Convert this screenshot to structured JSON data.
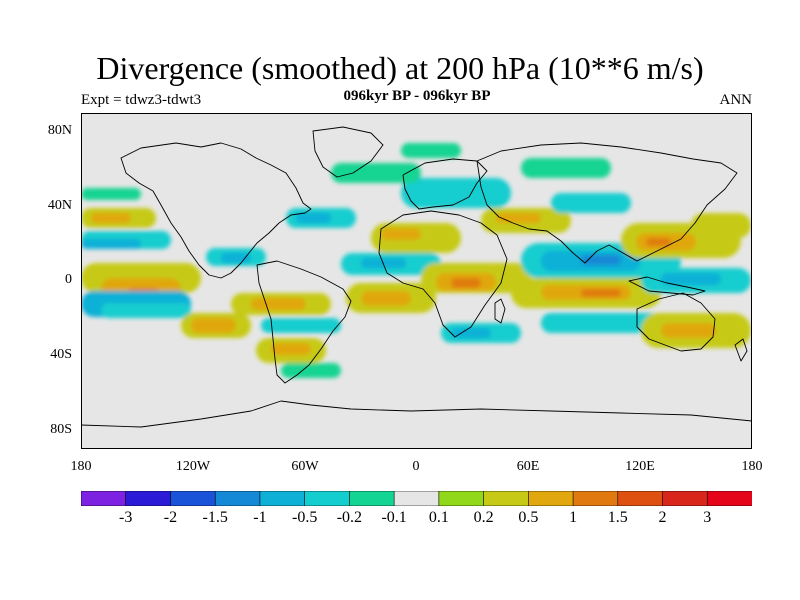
{
  "title": "Divergence (smoothed) at 200 hPa (10**6 m/s)",
  "experiment": "Expt = tdwz3-tdwt3",
  "period": "096kyr BP - 096kyr BP",
  "season": "ANN",
  "lat_labels": [
    "80N",
    "40N",
    "0",
    "40S",
    "80S"
  ],
  "lon_labels": [
    "180",
    "120W",
    "60W",
    "0",
    "60E",
    "120E",
    "180"
  ],
  "legend": {
    "labels": [
      "-3",
      "-2",
      "-1.5",
      "-1",
      "-0.5",
      "-0.2",
      "-0.1",
      "0.1",
      "0.2",
      "0.5",
      "1",
      "1.5",
      "2",
      "3"
    ],
    "colors": [
      "#7d22e0",
      "#2b1bd6",
      "#1a52d8",
      "#1588d6",
      "#0fb0d6",
      "#14cdcf",
      "#13d492",
      "#e6e6e6",
      "#92d81a",
      "#c6ca17",
      "#e0a70e",
      "#e07a10",
      "#dd5010",
      "#d8261a",
      "#e4051a"
    ]
  },
  "colors": {
    "neg_strong": "#1588d6",
    "neg_mid": "#0fb0d6",
    "neg_weak": "#14cdcf",
    "neg_faint": "#13d492",
    "neutral": "#e6e6e6",
    "pos_faint": "#92d81a",
    "pos_weak": "#c6ca17",
    "pos_mid": "#e0a70e",
    "pos_strong": "#e07a10"
  }
}
